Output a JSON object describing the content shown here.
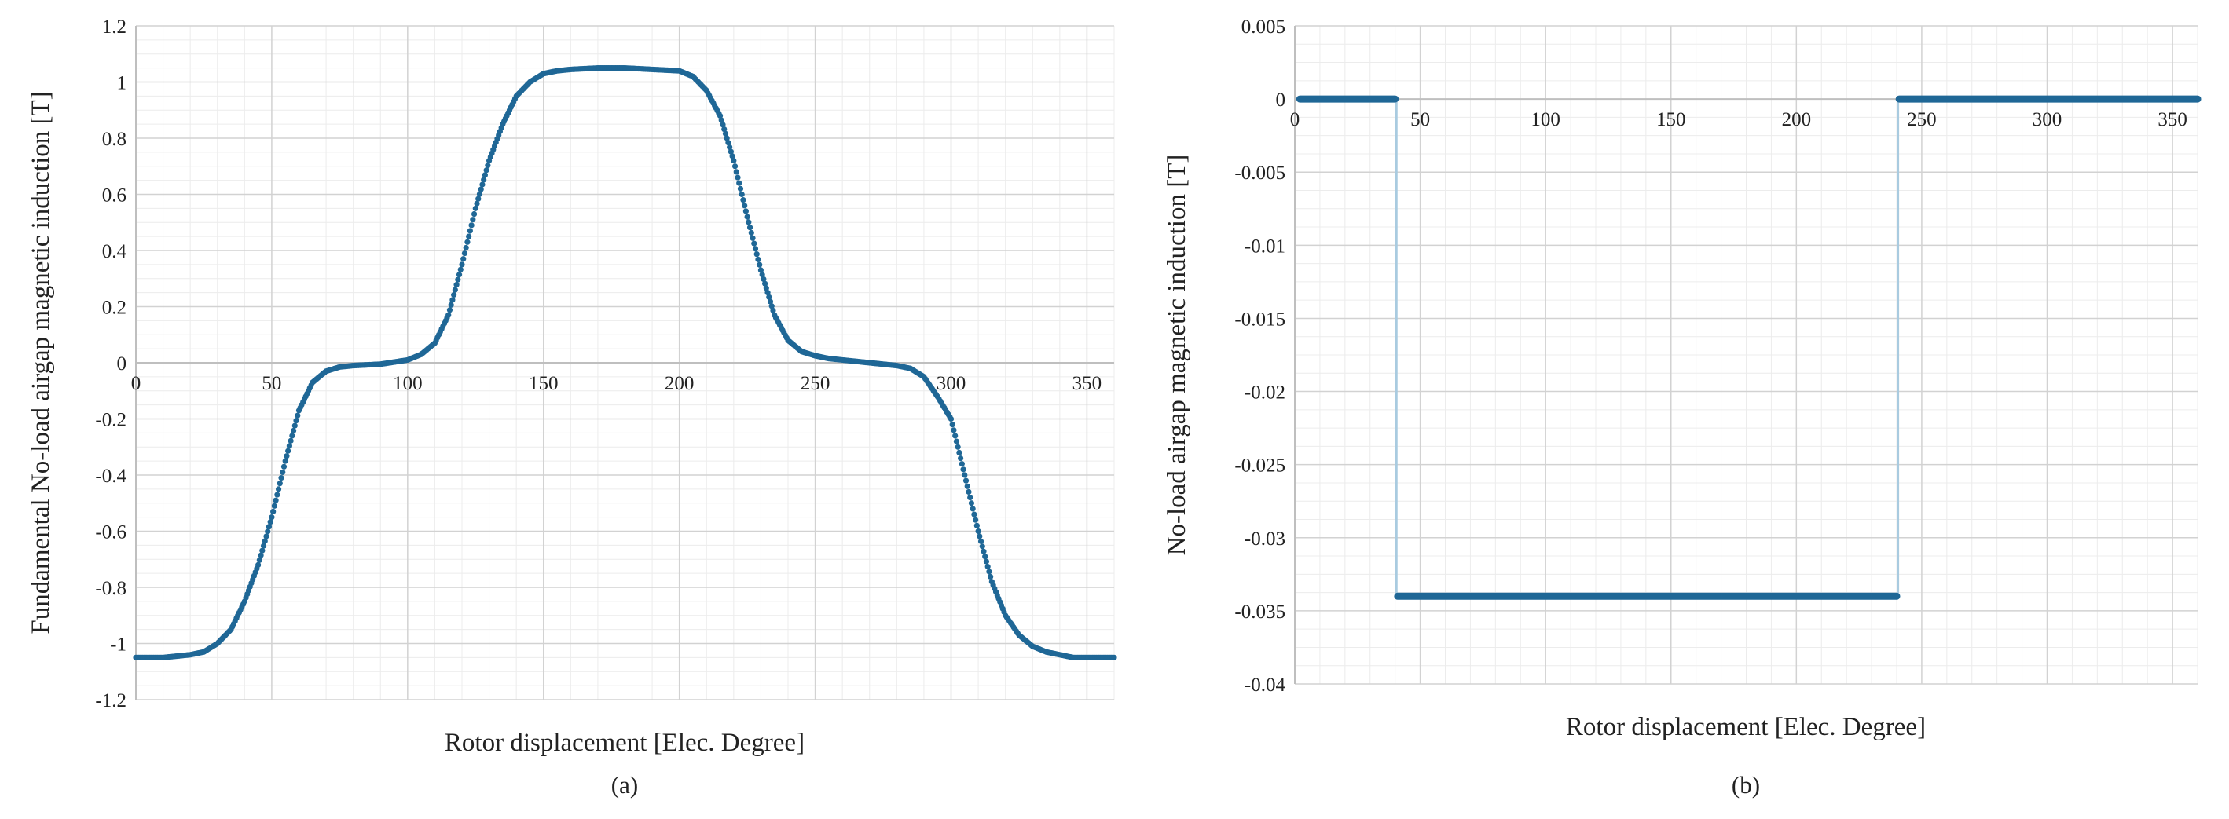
{
  "chart_data": [
    {
      "type": "scatter",
      "panel_label": "(a)",
      "xlabel": "Rotor displacement [Elec. Degree]",
      "ylabel": "Fundamental No-load airgap magnetic induction [T]",
      "xlim": [
        0,
        360
      ],
      "ylim": [
        -1.2,
        1.2
      ],
      "x_ticks": [
        0,
        50,
        100,
        150,
        200,
        250,
        300,
        350
      ],
      "y_ticks": [
        -1.2,
        -1,
        -0.8,
        -0.6,
        -0.4,
        -0.2,
        0,
        0.2,
        0.4,
        0.6,
        0.8,
        1,
        1.2
      ],
      "x_tick_labels": [
        "0",
        "50",
        "100",
        "150",
        "200",
        "250",
        "300",
        "350"
      ],
      "y_tick_labels": [
        "-1.2",
        "-1",
        "-0.8",
        "-0.6",
        "-0.4",
        "-0.2",
        "0",
        "0.2",
        "0.4",
        "0.6",
        "0.8",
        "1",
        "1.2"
      ],
      "grid": true,
      "color": "#1f6796",
      "series": [
        {
          "x": [
            0,
            10,
            20,
            25,
            30,
            35,
            40,
            45,
            50,
            55,
            60,
            65,
            70,
            75,
            80,
            90,
            100,
            105,
            110,
            115,
            120,
            125,
            130,
            135,
            140,
            145,
            150,
            155,
            160,
            170,
            180,
            190,
            200,
            205,
            210,
            215,
            220,
            225,
            230,
            235,
            240,
            245,
            250,
            255,
            260,
            270,
            280,
            285,
            290,
            295,
            300,
            305,
            310,
            315,
            320,
            325,
            330,
            335,
            340,
            345,
            350,
            360
          ],
          "y": [
            -1.05,
            -1.05,
            -1.04,
            -1.03,
            -1.0,
            -0.95,
            -0.85,
            -0.72,
            -0.55,
            -0.35,
            -0.17,
            -0.07,
            -0.03,
            -0.015,
            -0.01,
            -0.005,
            0.01,
            0.03,
            0.07,
            0.17,
            0.35,
            0.55,
            0.72,
            0.85,
            0.95,
            1.0,
            1.03,
            1.04,
            1.045,
            1.05,
            1.05,
            1.045,
            1.04,
            1.02,
            0.97,
            0.88,
            0.72,
            0.52,
            0.33,
            0.17,
            0.08,
            0.04,
            0.025,
            0.015,
            0.01,
            0.0,
            -0.01,
            -0.02,
            -0.05,
            -0.12,
            -0.2,
            -0.4,
            -0.6,
            -0.78,
            -0.9,
            -0.97,
            -1.01,
            -1.03,
            -1.04,
            -1.05,
            -1.05,
            -1.05
          ]
        }
      ]
    },
    {
      "type": "line",
      "panel_label": "(b)",
      "xlabel": "Rotor displacement [Elec. Degree]",
      "ylabel": "No-load airgap magnetic induction [T]",
      "xlim": [
        0,
        360
      ],
      "ylim": [
        -0.04,
        0.005
      ],
      "x_ticks": [
        0,
        50,
        100,
        150,
        200,
        250,
        300,
        350
      ],
      "y_ticks": [
        0.005,
        0,
        -0.005,
        -0.01,
        -0.015,
        -0.02,
        -0.025,
        -0.03,
        -0.035,
        -0.04
      ],
      "x_tick_labels": [
        "0",
        "50",
        "100",
        "150",
        "200",
        "250",
        "300",
        "350"
      ],
      "y_tick_labels": [
        "0.005",
        "0",
        "-0.005",
        "-0.01",
        "-0.015",
        "-0.02",
        "-0.025",
        "-0.03",
        "-0.035",
        "-0.04"
      ],
      "grid": true,
      "color": "#1f6796",
      "jump_color": "#a9cbe0",
      "series": [
        {
          "segments": [
            {
              "x": [
                2,
                40
              ],
              "y": [
                0,
                0
              ]
            },
            {
              "x": [
                41,
                240
              ],
              "y": [
                -0.034,
                -0.034
              ]
            },
            {
              "x": [
                241,
                360
              ],
              "y": [
                0,
                0
              ]
            }
          ],
          "jumps": [
            {
              "x": 40.5,
              "y": [
                0,
                -0.034
              ]
            },
            {
              "x": 240.5,
              "y": [
                -0.034,
                0
              ]
            }
          ]
        }
      ]
    }
  ]
}
